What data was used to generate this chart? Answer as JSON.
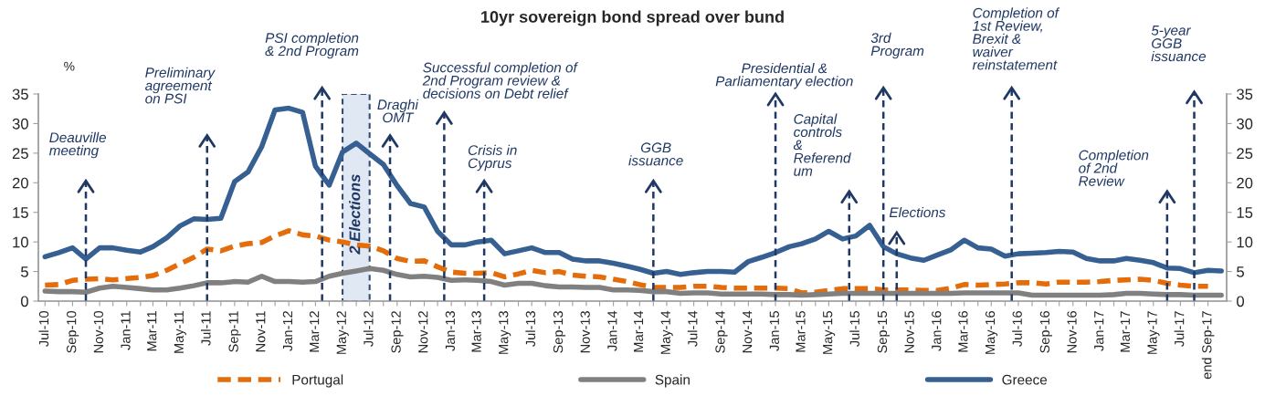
{
  "chart_data": {
    "type": "line",
    "title": "10yr sovereign bond spread over bund",
    "ylabel": "%",
    "x": [
      "2010-07",
      "2010-08",
      "2010-09",
      "2010-10",
      "2010-11",
      "2010-12",
      "2011-01",
      "2011-02",
      "2011-03",
      "2011-04",
      "2011-05",
      "2011-06",
      "2011-07",
      "2011-08",
      "2011-09",
      "2011-10",
      "2011-11",
      "2011-12",
      "2012-01",
      "2012-02",
      "2012-03",
      "2012-04",
      "2012-05",
      "2012-06",
      "2012-07",
      "2012-08",
      "2012-09",
      "2012-10",
      "2012-11",
      "2012-12",
      "2013-01",
      "2013-02",
      "2013-03",
      "2013-04",
      "2013-05",
      "2013-06",
      "2013-07",
      "2013-08",
      "2013-09",
      "2013-10",
      "2013-11",
      "2013-12",
      "2014-01",
      "2014-02",
      "2014-03",
      "2014-04",
      "2014-05",
      "2014-06",
      "2014-07",
      "2014-08",
      "2014-09",
      "2014-10",
      "2014-11",
      "2014-12",
      "2015-01",
      "2015-02",
      "2015-03",
      "2015-04",
      "2015-05",
      "2015-06",
      "2015-07",
      "2015-08",
      "2015-09",
      "2015-10",
      "2015-11",
      "2015-12",
      "2016-01",
      "2016-02",
      "2016-03",
      "2016-04",
      "2016-05",
      "2016-06",
      "2016-07",
      "2016-08",
      "2016-09",
      "2016-10",
      "2016-11",
      "2016-12",
      "2017-01",
      "2017-02",
      "2017-03",
      "2017-04",
      "2017-05",
      "2017-06",
      "2017-07",
      "2017-08",
      "2017-09",
      "2017-10"
    ],
    "xlim": [
      "2010-06-16",
      "2017-10-13"
    ],
    "xticks": [
      {
        "value": "2010-07",
        "label": "Jul-10"
      },
      {
        "value": "2010-08",
        "label": null
      },
      {
        "value": "2010-09",
        "label": "Sep-10"
      },
      {
        "value": "2010-10",
        "label": null
      },
      {
        "value": "2010-11",
        "label": "Nov-10"
      },
      {
        "value": "2010-12",
        "label": null
      },
      {
        "value": "2011-01",
        "label": "Jan-11"
      },
      {
        "value": "2011-02",
        "label": null
      },
      {
        "value": "2011-03",
        "label": "Mar-11"
      },
      {
        "value": "2011-04",
        "label": null
      },
      {
        "value": "2011-05",
        "label": "May-11"
      },
      {
        "value": "2011-06",
        "label": null
      },
      {
        "value": "2011-07",
        "label": "Jul-11"
      },
      {
        "value": "2011-08",
        "label": null
      },
      {
        "value": "2011-09",
        "label": "Sep-11"
      },
      {
        "value": "2011-10",
        "label": null
      },
      {
        "value": "2011-11",
        "label": "Nov-11"
      },
      {
        "value": "2011-12",
        "label": null
      },
      {
        "value": "2012-01",
        "label": "Jan-12"
      },
      {
        "value": "2012-02",
        "label": null
      },
      {
        "value": "2012-03",
        "label": "Mar-12"
      },
      {
        "value": "2012-04",
        "label": null
      },
      {
        "value": "2012-05",
        "label": "May-12"
      },
      {
        "value": "2012-06",
        "label": null
      },
      {
        "value": "2012-07",
        "label": "Jul-12"
      },
      {
        "value": "2012-08",
        "label": null
      },
      {
        "value": "2012-09",
        "label": "Sep-12"
      },
      {
        "value": "2012-10",
        "label": null
      },
      {
        "value": "2012-11",
        "label": "Nov-12"
      },
      {
        "value": "2012-12",
        "label": null
      },
      {
        "value": "2013-01",
        "label": "Jan-13"
      },
      {
        "value": "2013-02",
        "label": null
      },
      {
        "value": "2013-03",
        "label": "Mar-13"
      },
      {
        "value": "2013-04",
        "label": null
      },
      {
        "value": "2013-05",
        "label": "May-13"
      },
      {
        "value": "2013-06",
        "label": null
      },
      {
        "value": "2013-07",
        "label": "Jul-13"
      },
      {
        "value": "2013-08",
        "label": null
      },
      {
        "value": "2013-09",
        "label": "Sep-13"
      },
      {
        "value": "2013-10",
        "label": null
      },
      {
        "value": "2013-11",
        "label": "Nov-13"
      },
      {
        "value": "2013-12",
        "label": null
      },
      {
        "value": "2014-01",
        "label": "Jan-14"
      },
      {
        "value": "2014-02",
        "label": null
      },
      {
        "value": "2014-03",
        "label": "Mar-14"
      },
      {
        "value": "2014-04",
        "label": null
      },
      {
        "value": "2014-05",
        "label": "May-14"
      },
      {
        "value": "2014-06",
        "label": null
      },
      {
        "value": "2014-07",
        "label": "Jul-14"
      },
      {
        "value": "2014-08",
        "label": null
      },
      {
        "value": "2014-09",
        "label": "Sep-14"
      },
      {
        "value": "2014-10",
        "label": null
      },
      {
        "value": "2014-11",
        "label": "Nov-14"
      },
      {
        "value": "2014-12",
        "label": null
      },
      {
        "value": "2015-01",
        "label": "Jan-15"
      },
      {
        "value": "2015-02",
        "label": null
      },
      {
        "value": "2015-03",
        "label": "Mar-15"
      },
      {
        "value": "2015-04",
        "label": null
      },
      {
        "value": "2015-05",
        "label": "May-15"
      },
      {
        "value": "2015-06",
        "label": null
      },
      {
        "value": "2015-07",
        "label": "Jul-15"
      },
      {
        "value": "2015-08",
        "label": null
      },
      {
        "value": "2015-09",
        "label": "Sep-15"
      },
      {
        "value": "2015-10",
        "label": null
      },
      {
        "value": "2015-11",
        "label": "Nov-15"
      },
      {
        "value": "2015-12",
        "label": null
      },
      {
        "value": "2016-01",
        "label": "Jan-16"
      },
      {
        "value": "2016-02",
        "label": null
      },
      {
        "value": "2016-03",
        "label": "Mar-16"
      },
      {
        "value": "2016-04",
        "label": null
      },
      {
        "value": "2016-05",
        "label": "May-16"
      },
      {
        "value": "2016-06",
        "label": null
      },
      {
        "value": "2016-07",
        "label": "Jul-16"
      },
      {
        "value": "2016-08",
        "label": null
      },
      {
        "value": "2016-09",
        "label": "Sep-16"
      },
      {
        "value": "2016-10",
        "label": null
      },
      {
        "value": "2016-11",
        "label": "Nov-16"
      },
      {
        "value": "2016-12",
        "label": null
      },
      {
        "value": "2017-01",
        "label": "Jan-17"
      },
      {
        "value": "2017-02",
        "label": null
      },
      {
        "value": "2017-03",
        "label": "Mar-17"
      },
      {
        "value": "2017-04",
        "label": null
      },
      {
        "value": "2017-05",
        "label": "May-17"
      },
      {
        "value": "2017-06",
        "label": null
      },
      {
        "value": "2017-07",
        "label": "Jul-17"
      },
      {
        "value": "2017-08",
        "label": null
      },
      {
        "value": "2017-09",
        "label": "end Sep-17"
      }
    ],
    "ylim": [
      0,
      35
    ],
    "yticks": [
      0,
      5,
      10,
      15,
      20,
      25,
      30,
      35
    ],
    "y2lim": [
      0,
      35
    ],
    "y2ticks": [
      0,
      5,
      10,
      15,
      20,
      25,
      30,
      35
    ],
    "legend": "bottom",
    "series": [
      {
        "name": "Portugal",
        "color": "#e46c0a",
        "line_style": "dashed",
        "values": [
          2.7,
          2.8,
          3.5,
          3.7,
          3.8,
          3.6,
          3.8,
          4.0,
          4.3,
          5.2,
          6.3,
          7.4,
          8.8,
          8.5,
          9.3,
          9.7,
          9.9,
          11.0,
          11.9,
          11.2,
          11.0,
          10.3,
          10.0,
          9.5,
          9.3,
          8.5,
          7.2,
          6.7,
          6.8,
          5.8,
          4.9,
          4.7,
          4.7,
          4.8,
          4.1,
          4.6,
          5.2,
          4.8,
          5.0,
          4.4,
          4.2,
          4.1,
          3.7,
          3.3,
          2.8,
          2.3,
          2.3,
          2.3,
          2.5,
          2.5,
          2.3,
          2.2,
          2.2,
          2.2,
          2.2,
          2.1,
          1.4,
          1.5,
          1.8,
          2.1,
          2.1,
          2.1,
          1.9,
          1.9,
          1.9,
          1.8,
          1.8,
          2.2,
          2.8,
          2.7,
          2.8,
          2.9,
          3.1,
          3.1,
          2.9,
          3.2,
          3.2,
          3.2,
          3.3,
          3.5,
          3.6,
          3.7,
          3.5,
          3.0,
          2.7,
          2.5,
          2.5,
          null
        ]
      },
      {
        "name": "Spain",
        "color": "#808080",
        "line_style": "solid",
        "values": [
          1.7,
          1.6,
          1.6,
          1.5,
          2.2,
          2.5,
          2.3,
          2.1,
          1.9,
          1.9,
          2.2,
          2.6,
          3.1,
          3.1,
          3.3,
          3.2,
          4.2,
          3.3,
          3.3,
          3.2,
          3.3,
          4.2,
          4.7,
          5.1,
          5.5,
          5.2,
          4.5,
          4.1,
          4.2,
          4.0,
          3.5,
          3.6,
          3.5,
          3.3,
          2.7,
          3.0,
          3.0,
          2.6,
          2.4,
          2.4,
          2.3,
          2.3,
          1.9,
          1.9,
          1.8,
          1.6,
          1.6,
          1.3,
          1.4,
          1.4,
          1.2,
          1.2,
          1.2,
          1.2,
          1.1,
          1.1,
          1.0,
          1.1,
          1.2,
          1.3,
          1.3,
          1.3,
          1.3,
          1.3,
          1.3,
          1.3,
          1.3,
          1.3,
          1.4,
          1.4,
          1.4,
          1.4,
          1.4,
          1.0,
          1.0,
          1.0,
          1.0,
          1.0,
          1.0,
          1.1,
          1.3,
          1.3,
          1.2,
          1.1,
          1.1,
          1.0,
          1.0,
          1.0
        ]
      },
      {
        "name": "Greece",
        "color": "#376092",
        "line_style": "solid",
        "values": [
          7.5,
          8.2,
          9.0,
          7.1,
          9.0,
          9.0,
          8.6,
          8.3,
          9.2,
          10.7,
          12.7,
          13.9,
          13.8,
          14.0,
          20.2,
          21.8,
          26.1,
          32.3,
          32.6,
          31.9,
          22.8,
          19.6,
          25.2,
          26.7,
          24.9,
          23.1,
          19.5,
          16.5,
          15.9,
          11.8,
          9.5,
          9.5,
          10.0,
          10.3,
          8.0,
          8.5,
          9.0,
          8.2,
          8.2,
          7.1,
          6.8,
          6.8,
          6.4,
          5.9,
          5.4,
          4.7,
          5.0,
          4.5,
          4.8,
          5.0,
          5.0,
          4.9,
          6.7,
          7.4,
          8.2,
          9.2,
          9.7,
          10.5,
          11.8,
          10.5,
          11.0,
          12.8,
          9.2,
          8.0,
          7.3,
          6.9,
          7.8,
          8.7,
          10.3,
          9.0,
          8.8,
          7.6,
          8.0,
          8.1,
          8.2,
          8.4,
          8.3,
          7.2,
          6.8,
          6.8,
          7.2,
          6.9,
          6.5,
          5.6,
          5.5,
          4.8,
          5.2,
          5.1
        ]
      }
    ],
    "bands": [
      {
        "axis": "x",
        "from": "2012-05",
        "to": "2012-07",
        "label": "2 Elections",
        "color": "#dce6f2"
      }
    ],
    "ref_lines": [
      {
        "axis": "x",
        "value": "2010-10",
        "label": "Deauville\nmeeting",
        "color": "#1f3864",
        "line_style": "dashed"
      },
      {
        "axis": "x",
        "value": "2011-07",
        "label": "Preliminary\nagreement\non PSI",
        "color": "#1f3864",
        "line_style": "dashed"
      },
      {
        "axis": "x",
        "value": "2012-03-16",
        "label": "PSI completion\n& 2nd Program",
        "color": "#1f3864",
        "line_style": "dashed"
      },
      {
        "axis": "x",
        "value": "2012-08-16",
        "label": "Draghi\nOMT",
        "color": "#1f3864",
        "line_style": "dashed"
      },
      {
        "axis": "x",
        "value": "2012-12-16",
        "label": "Successful completion of\n2nd Program review &\ndecisions on Debt relief",
        "color": "#1f3864",
        "line_style": "dashed"
      },
      {
        "axis": "x",
        "value": "2013-03-16",
        "label": "Crisis in\nCyprus",
        "color": "#1f3864",
        "line_style": "dashed"
      },
      {
        "axis": "x",
        "value": "2014-04",
        "label": "GGB\nissuance",
        "color": "#1f3864",
        "line_style": "dashed"
      },
      {
        "axis": "x",
        "value": "2015-01",
        "label": "Presidential &\nParliamentary election",
        "color": "#1f3864",
        "line_style": "dashed"
      },
      {
        "axis": "x",
        "value": "2015-06-16",
        "label": "Capital\ncontrols\n&\nReferend\num",
        "color": "#1f3864",
        "line_style": "dashed"
      },
      {
        "axis": "x",
        "value": "2015-09",
        "label": "3rd\nProgram",
        "color": "#1f3864",
        "line_style": "dashed"
      },
      {
        "axis": "x",
        "value": "2015-10",
        "label": "Elections",
        "color": "#1f3864",
        "line_style": "dashed"
      },
      {
        "axis": "x",
        "value": "2016-06-16",
        "label": "Completion of\n1st Review,\nBrexit &\nwaiver\nreinstatement",
        "color": "#1f3864",
        "line_style": "dashed"
      },
      {
        "axis": "x",
        "value": "2017-06",
        "label": "Completion\nof 2nd\nReview",
        "color": "#1f3864",
        "line_style": "dashed"
      },
      {
        "axis": "x",
        "value": "2017-08",
        "label": "5-year\nGGB\nissuance",
        "color": "#1f3864",
        "line_style": "dashed"
      }
    ]
  }
}
